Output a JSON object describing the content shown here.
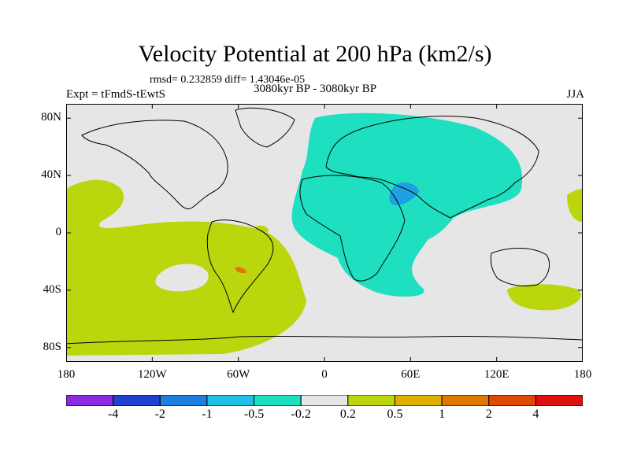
{
  "title": "Velocity Potential at 200 hPa (km2/s)",
  "stats_line": "rmsd= 0.232859  diff= 1.43046e-05",
  "experiment": "Expt = tFmdS-tEwtS",
  "period": "3080kyr BP - 3080kyr BP",
  "season": "JJA",
  "y_axis": {
    "labels": [
      "80N",
      "40N",
      "0",
      "40S",
      "80S"
    ],
    "values": [
      80,
      40,
      0,
      -40,
      -80
    ]
  },
  "x_axis": {
    "labels": [
      "180",
      "120W",
      "60W",
      "0",
      "60E",
      "120E",
      "180"
    ],
    "values": [
      -180,
      -120,
      -60,
      0,
      60,
      120,
      180
    ]
  },
  "colorbar": {
    "labels": [
      "-4",
      "-2",
      "-1",
      "-0.5",
      "-0.2",
      "0.2",
      "0.5",
      "1",
      "2",
      "4"
    ],
    "colors": [
      "#8a2be2",
      "#2040d0",
      "#1e7fe0",
      "#1fc0e8",
      "#1edfc0",
      "#e6e6e6",
      "#bcd60e",
      "#e0b000",
      "#e07800",
      "#e04a00",
      "#e01010"
    ]
  },
  "field_colors": {
    "background": "#e6e6e6",
    "positive_0_2": "#bcd60e",
    "negative_0_2": "#1edfc0",
    "negative_0_5": "#1fa0e0",
    "positive_1": "#e07800"
  }
}
